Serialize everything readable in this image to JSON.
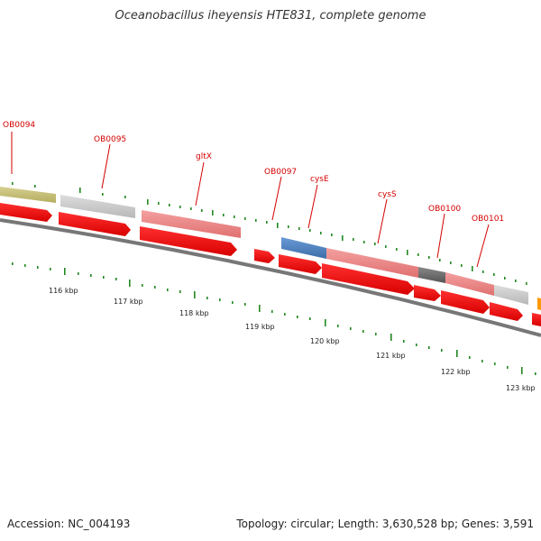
{
  "title": "Oceanobacillus iheyensis HTE831, complete genome",
  "footer": {
    "accession": "Accession: NC_004193",
    "topology": "Topology: circular; Length: 3,630,528 bp; Genes: 3,591"
  },
  "gene_labels": [
    "OB0094",
    "OB0095",
    "gltX",
    "OB0097",
    "cysE",
    "cysS",
    "OB0100",
    "OB0101"
  ],
  "kbp_labels": [
    "116 kbp",
    "117 kbp",
    "118 kbp",
    "119 kbp",
    "120 kbp",
    "121 kbp",
    "122 kbp",
    "123 kbp"
  ],
  "colors": {
    "gene_label": "#d40000",
    "strand_arrow": "#ff0000",
    "backbone": "#777777",
    "tick": "#228822",
    "feature_olive": "#c8c07a",
    "feature_gray": "#cfcfcf",
    "feature_pink": "#f08080",
    "feature_blue": "#4a7fc0",
    "feature_dark": "#666666",
    "feature_orange": "#ff9900"
  }
}
